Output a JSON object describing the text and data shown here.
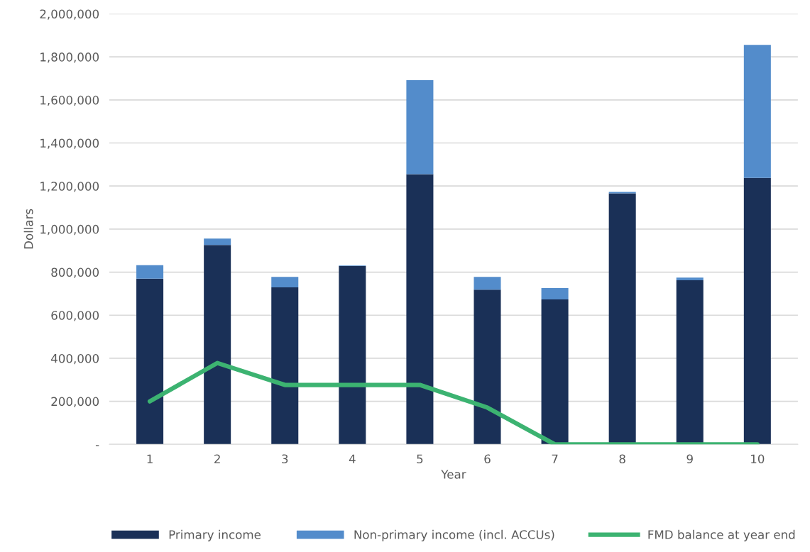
{
  "chart_data": {
    "type": "bar",
    "stacked": true,
    "xlabel": "Year",
    "ylabel": "Dollars",
    "categories": [
      "1",
      "2",
      "3",
      "4",
      "5",
      "6",
      "7",
      "8",
      "9",
      "10"
    ],
    "series": [
      {
        "name": "Primary income",
        "color": "#1a3057",
        "values": [
          770000,
          926000,
          729000,
          828000,
          1255000,
          719000,
          673000,
          1166000,
          762000,
          1238000
        ]
      },
      {
        "name": "Non-primary income (incl. ACCUs)",
        "color": "#538ccb",
        "values": [
          62000,
          30000,
          49000,
          3000,
          437000,
          59000,
          53000,
          7000,
          13000,
          618000
        ]
      },
      {
        "name": "FMD balance at year end",
        "type": "line",
        "color": "#3cb371",
        "values": [
          200000,
          378000,
          276000,
          276000,
          276000,
          171000,
          0,
          0,
          0,
          0
        ]
      }
    ],
    "ylim": [
      0,
      2000000
    ],
    "yticks": [
      {
        "value": 0,
        "label": "-"
      },
      {
        "value": 200000,
        "label": "200,000"
      },
      {
        "value": 400000,
        "label": "400,000"
      },
      {
        "value": 600000,
        "label": "600,000"
      },
      {
        "value": 800000,
        "label": "800,000"
      },
      {
        "value": 1000000,
        "label": "1,000,000"
      },
      {
        "value": 1200000,
        "label": "1,200,000"
      },
      {
        "value": 1400000,
        "label": "1,400,000"
      },
      {
        "value": 1600000,
        "label": "1,600,000"
      },
      {
        "value": 1800000,
        "label": "1,800,000"
      },
      {
        "value": 2000000,
        "label": "2,000,000"
      }
    ],
    "grid": "y",
    "legend": "bottom",
    "marker": "none",
    "line_style": "solid"
  }
}
